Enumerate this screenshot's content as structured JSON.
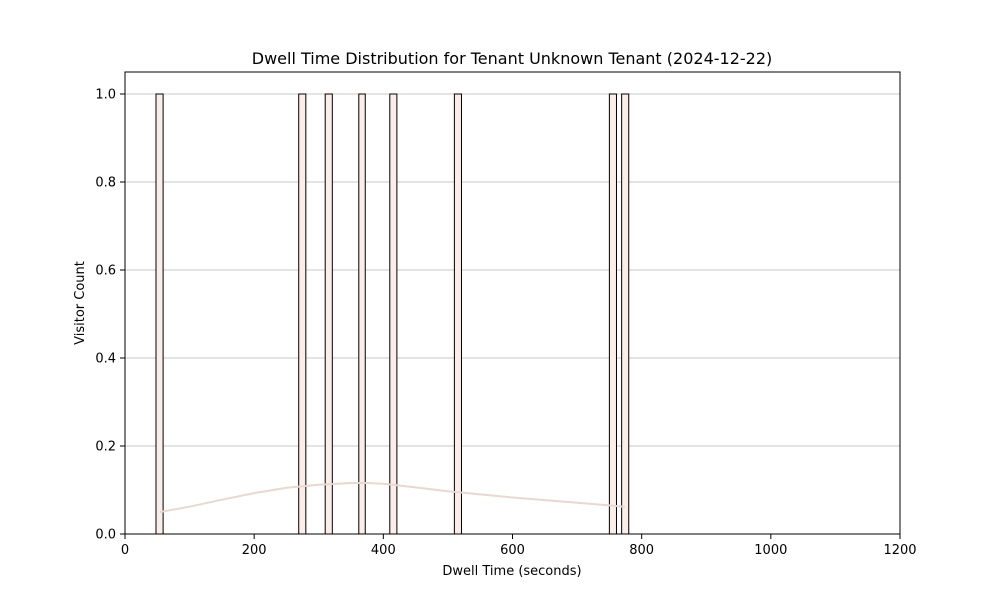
{
  "chart_data": {
    "type": "bar",
    "title": "Dwell Time Distribution for Tenant Unknown Tenant (2024-12-22)",
    "xlabel": "Dwell Time (seconds)",
    "ylabel": "Visitor Count",
    "xlim": [
      0,
      1200
    ],
    "ylim": [
      0,
      1.05
    ],
    "x_ticks": [
      0,
      200,
      400,
      600,
      800,
      1000,
      1200
    ],
    "y_ticks": [
      0.0,
      0.2,
      0.4,
      0.6,
      0.8,
      1.0
    ],
    "x_tick_labels": [
      "0",
      "200",
      "400",
      "600",
      "800",
      "1000",
      "1200"
    ],
    "y_tick_labels": [
      "0.0",
      "0.2",
      "0.4",
      "0.6",
      "0.8",
      "1.0"
    ],
    "grid": "horizontal",
    "bars": [
      {
        "x0": 48,
        "x1": 59,
        "value": 1
      },
      {
        "x0": 269,
        "x1": 280,
        "value": 1
      },
      {
        "x0": 310,
        "x1": 321,
        "value": 1
      },
      {
        "x0": 362,
        "x1": 372,
        "value": 1
      },
      {
        "x0": 410,
        "x1": 421,
        "value": 1
      },
      {
        "x0": 510,
        "x1": 521,
        "value": 1
      },
      {
        "x0": 750,
        "x1": 761,
        "value": 1
      },
      {
        "x0": 769,
        "x1": 780,
        "value": 1
      }
    ],
    "kde": {
      "x": [
        54,
        100,
        150,
        200,
        250,
        300,
        350,
        375,
        400,
        450,
        500,
        550,
        600,
        650,
        700,
        750,
        774
      ],
      "y": [
        0.05,
        0.062,
        0.078,
        0.093,
        0.105,
        0.112,
        0.116,
        0.116,
        0.114,
        0.106,
        0.097,
        0.09,
        0.083,
        0.077,
        0.071,
        0.065,
        0.062
      ]
    },
    "colors": {
      "bar_fill": "#fbeee9",
      "bar_edge": "#000000",
      "kde_line": "#e8d8d0",
      "grid": "#c8c8c8"
    }
  }
}
